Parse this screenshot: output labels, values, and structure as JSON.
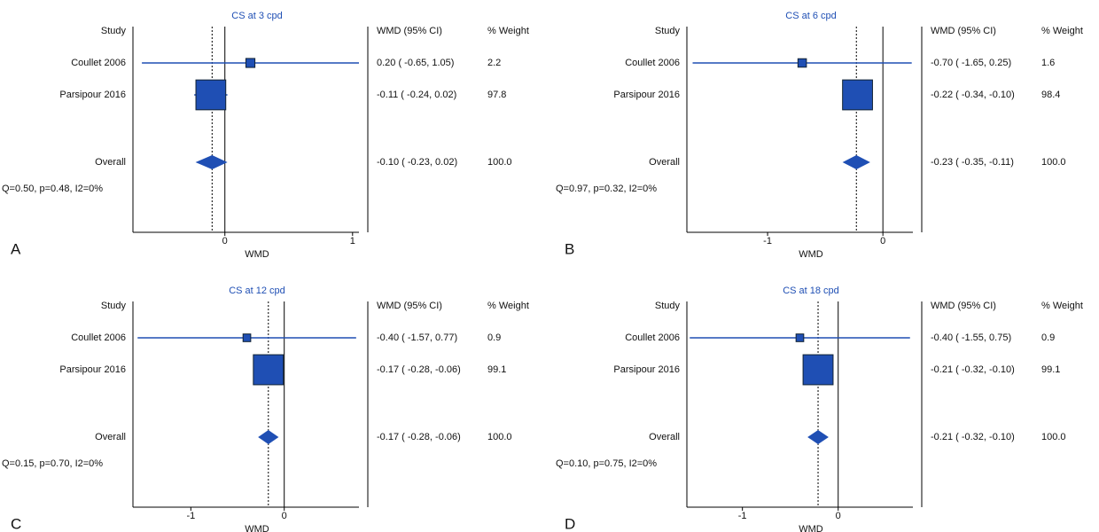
{
  "chart_data": [
    {
      "type": "forest",
      "panel_label": "A",
      "title": "CS at 3 cpd",
      "study_header": "Study",
      "ci_header": "WMD (95% CI)",
      "weight_header": "% Weight",
      "x_label": "WMD",
      "color": "#1f4fb4",
      "studies": [
        "Coullet 2006",
        "Parsipour 2016"
      ],
      "values": [
        0.2,
        -0.11
      ],
      "lower": [
        -0.65,
        -0.24
      ],
      "upper": [
        1.05,
        0.02
      ],
      "value_labels": [
        "0.20 ( -0.65, 1.05)",
        "-0.11 ( -0.24, 0.02)"
      ],
      "weights": [
        2.2,
        97.8
      ],
      "overall": {
        "label": "Overall",
        "value": -0.1,
        "lower": -0.23,
        "upper": 0.02,
        "value_label": "-0.10 ( -0.23, 0.02)",
        "weight_label": "100.0"
      },
      "heterogeneity": "Q=0.50, p=0.48, I2=0%",
      "xlim": [
        -0.72,
        1.05
      ],
      "xticks": [
        0,
        1
      ]
    },
    {
      "type": "forest",
      "panel_label": "B",
      "title": "CS at 6 cpd",
      "study_header": "Study",
      "ci_header": "WMD (95% CI)",
      "weight_header": "% Weight",
      "x_label": "WMD",
      "color": "#1f4fb4",
      "studies": [
        "Coullet 2006",
        "Parsipour 2016"
      ],
      "values": [
        -0.7,
        -0.22
      ],
      "lower": [
        -1.65,
        -0.34
      ],
      "upper": [
        0.25,
        -0.1
      ],
      "value_labels": [
        "-0.70 ( -1.65, 0.25)",
        "-0.22 ( -0.34, -0.10)"
      ],
      "weights": [
        1.6,
        98.4
      ],
      "overall": {
        "label": "Overall",
        "value": -0.23,
        "lower": -0.35,
        "upper": -0.11,
        "value_label": "-0.23 ( -0.35, -0.11)",
        "weight_label": "100.0"
      },
      "heterogeneity": "Q=0.97, p=0.32, I2=0%",
      "xlim": [
        -1.7,
        0.26
      ],
      "xticks": [
        -1,
        0
      ]
    },
    {
      "type": "forest",
      "panel_label": "C",
      "title": "CS at 12 cpd",
      "study_header": "Study",
      "ci_header": "WMD (95% CI)",
      "weight_header": "% Weight",
      "x_label": "WMD",
      "color": "#1f4fb4",
      "studies": [
        "Coullet 2006",
        "Parsipour 2016"
      ],
      "values": [
        -0.4,
        -0.17
      ],
      "lower": [
        -1.57,
        -0.28
      ],
      "upper": [
        0.77,
        -0.06
      ],
      "value_labels": [
        "-0.40 ( -1.57, 0.77)",
        "-0.17 ( -0.28, -0.06)"
      ],
      "weights": [
        0.9,
        99.1
      ],
      "overall": {
        "label": "Overall",
        "value": -0.17,
        "lower": -0.28,
        "upper": -0.06,
        "value_label": "-0.17 ( -0.28, -0.06)",
        "weight_label": "100.0"
      },
      "heterogeneity": "Q=0.15, p=0.70, I2=0%",
      "xlim": [
        -1.62,
        0.8
      ],
      "xticks": [
        -1,
        0
      ]
    },
    {
      "type": "forest",
      "panel_label": "D",
      "title": "CS at 18 cpd",
      "study_header": "Study",
      "ci_header": "WMD (95% CI)",
      "weight_header": "% Weight",
      "x_label": "WMD",
      "color": "#1f4fb4",
      "studies": [
        "Coullet 2006",
        "Parsipour 2016"
      ],
      "values": [
        -0.4,
        -0.21
      ],
      "lower": [
        -1.55,
        -0.32
      ],
      "upper": [
        0.75,
        -0.1
      ],
      "value_labels": [
        "-0.40 ( -1.55, 0.75)",
        "-0.21 ( -0.32, -0.10)"
      ],
      "weights": [
        0.9,
        99.1
      ],
      "overall": {
        "label": "Overall",
        "value": -0.21,
        "lower": -0.32,
        "upper": -0.1,
        "value_label": "-0.21 ( -0.32, -0.10)",
        "weight_label": "100.0"
      },
      "heterogeneity": "Q=0.10, p=0.75, I2=0%",
      "xlim": [
        -1.58,
        0.78
      ],
      "xticks": [
        -1,
        0
      ]
    }
  ]
}
